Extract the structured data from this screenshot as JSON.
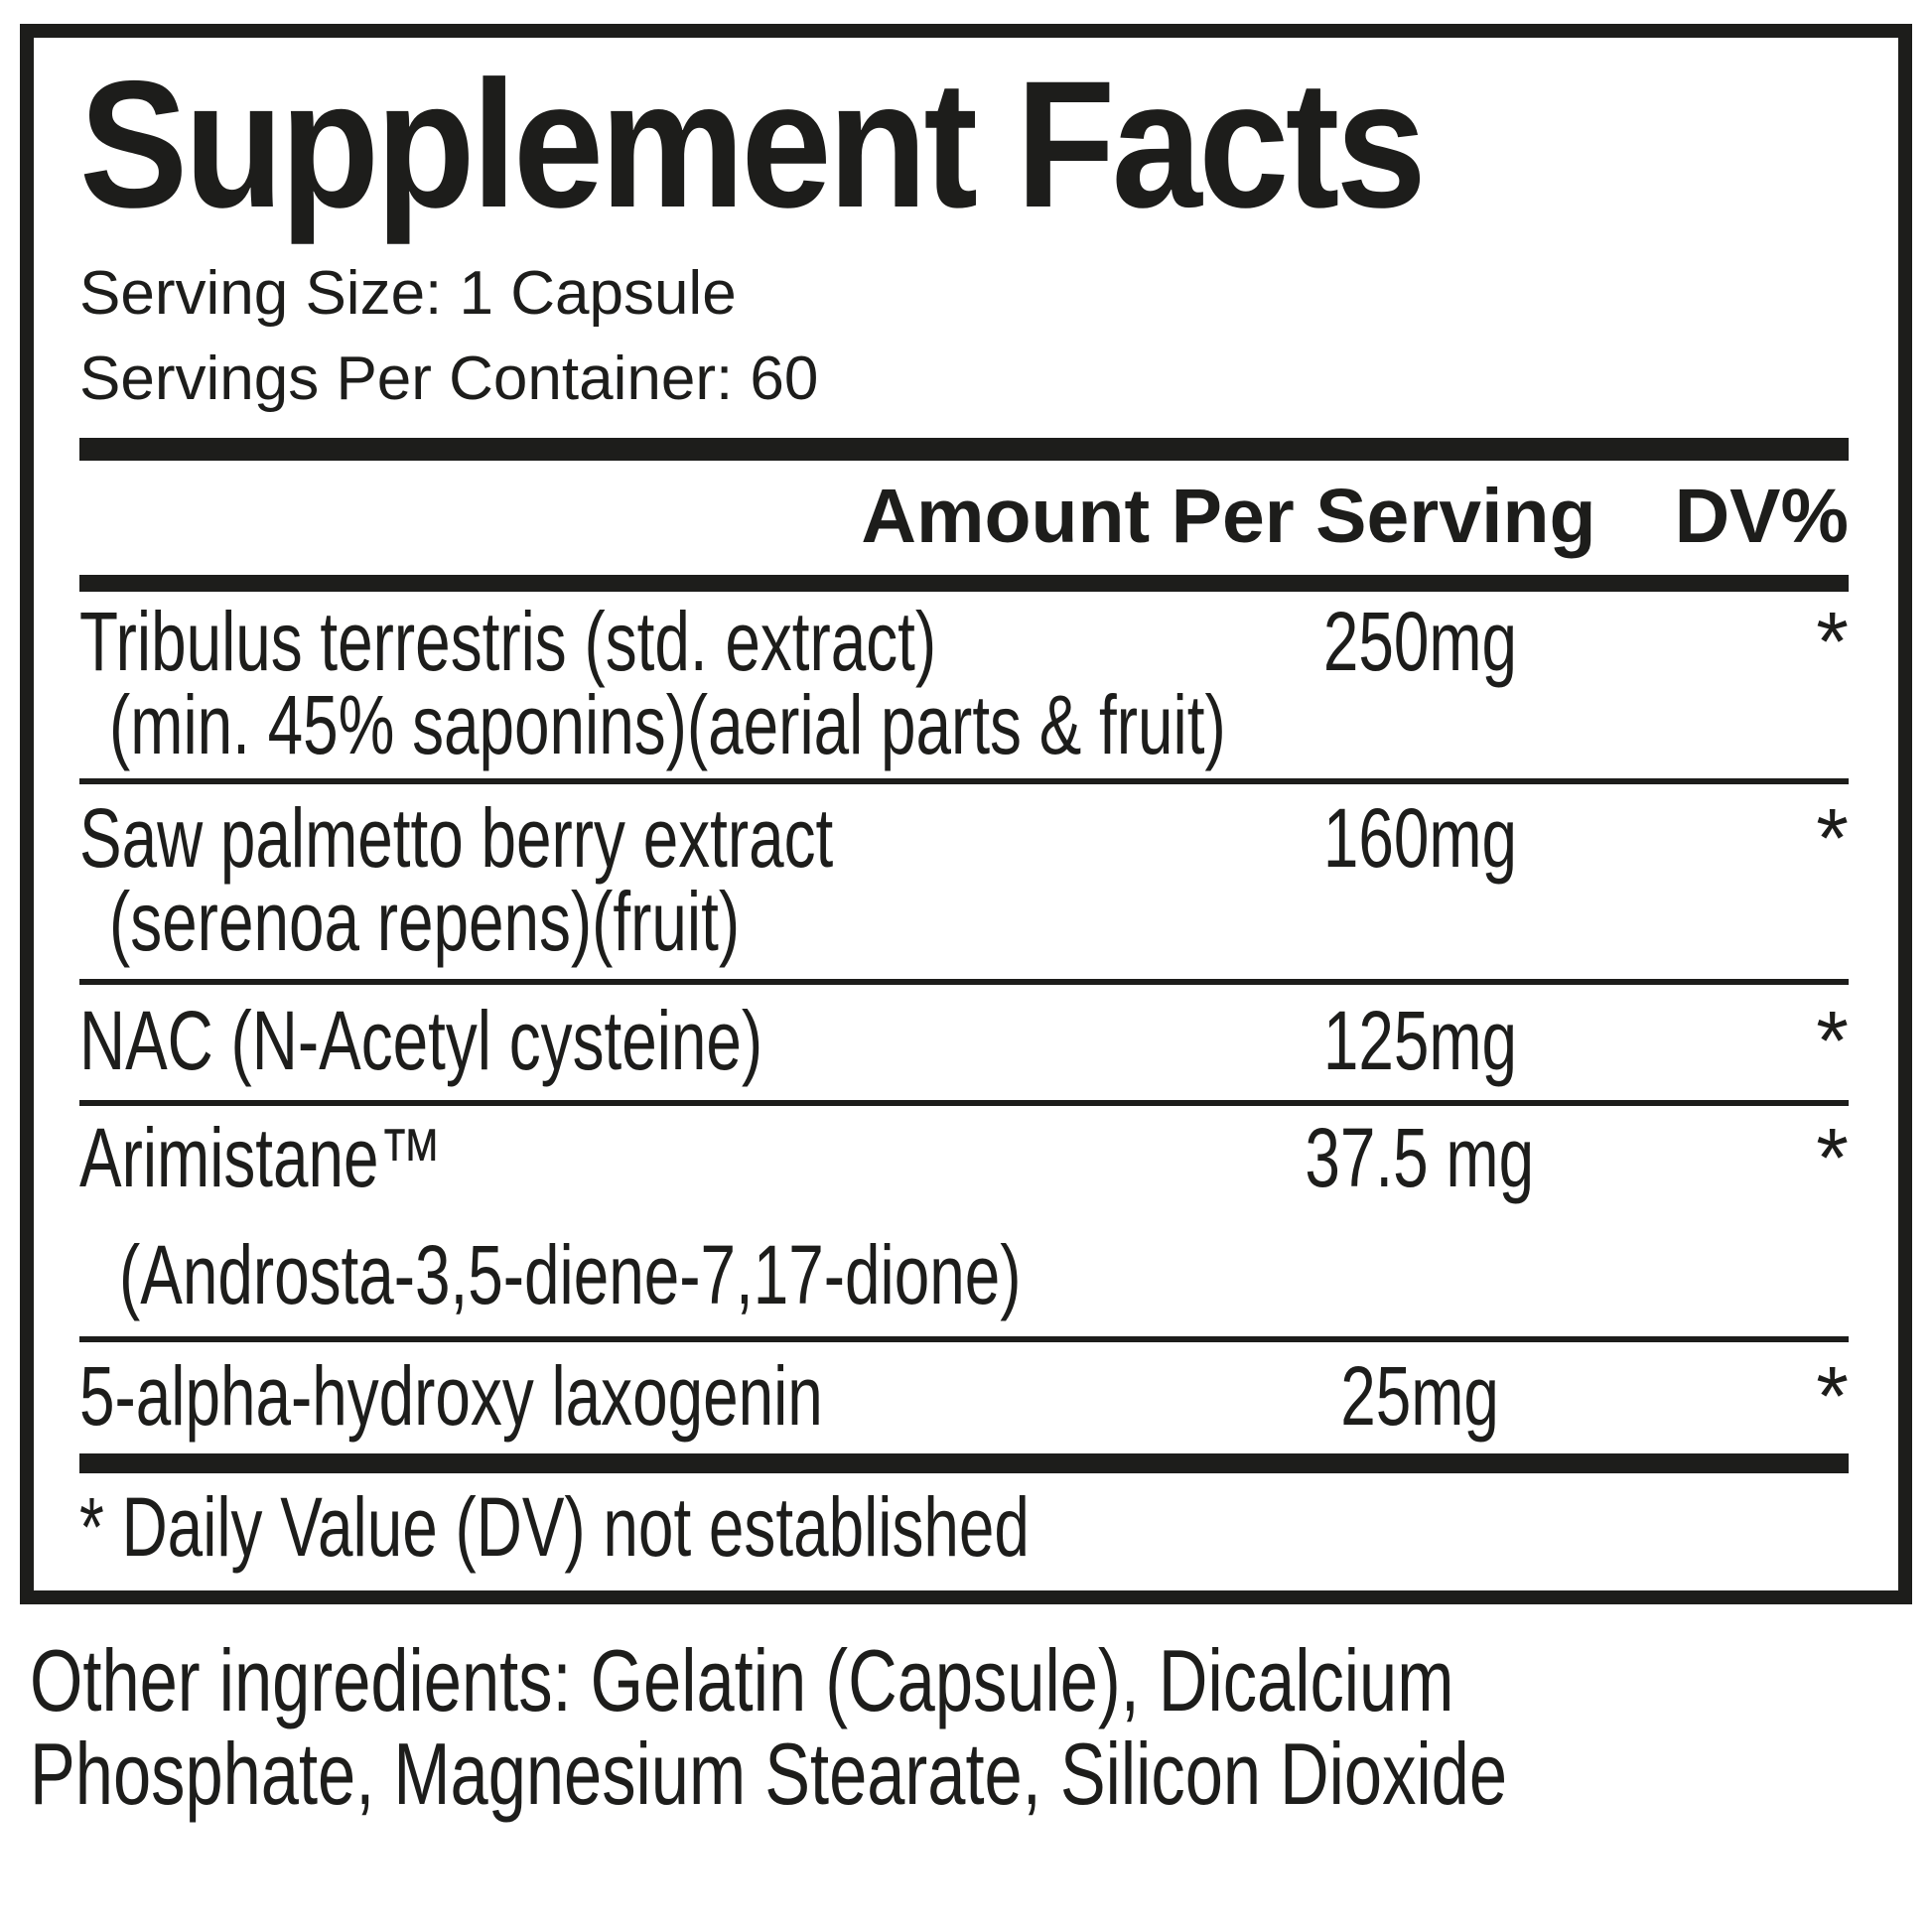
{
  "label": {
    "title": "Supplement Facts",
    "serving_size": "Serving Size: 1 Capsule",
    "servings_per_container": "Servings Per Container: 60",
    "header": {
      "amount": "Amount Per Serving",
      "dv": "DV%"
    },
    "rows": [
      {
        "name": "Tribulus terrestris (std. extract)",
        "detail": "(min. 45% saponins)(aerial parts & fruit)",
        "amount": "250mg",
        "dv": "*"
      },
      {
        "name": "Saw palmetto berry extract",
        "detail": "(serenoa repens)(fruit)",
        "amount": "160mg",
        "dv": "*"
      },
      {
        "name": "NAC (N-Acetyl cysteine)",
        "amount": "125mg",
        "dv": "*"
      },
      {
        "name": "Arimistane™",
        "detail": "(Androsta-3,5-diene-7,17-dione)",
        "amount": "37.5 mg",
        "dv": "*"
      },
      {
        "name": "5-alpha-hydroxy laxogenin",
        "amount": "25mg",
        "dv": "*"
      }
    ],
    "footnote": "* Daily Value (DV) not established",
    "other_ingredients": [
      "Other ingredients: Gelatin (Capsule), Dicalcium",
      "Phosphate, Magnesium Stearate, Silicon Dioxide"
    ],
    "colors": {
      "ink": "#1d1d1b",
      "background": "#ffffff"
    }
  }
}
